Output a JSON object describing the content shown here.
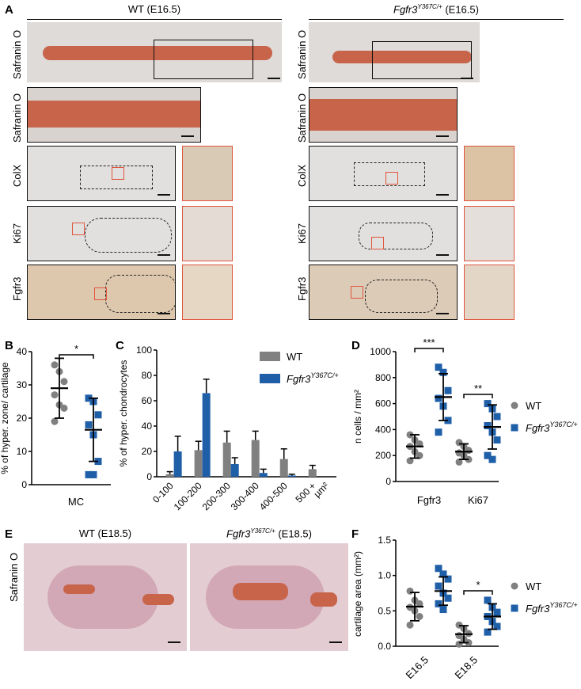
{
  "panel_letters": {
    "A": "A",
    "B": "B",
    "C": "C",
    "D": "D",
    "E": "E",
    "F": "F"
  },
  "panelA": {
    "wt_title": "WT (E16.5)",
    "mut_title_gene": "Fgfr3",
    "mut_title_sup": "Y367C/+",
    "mut_title_stage": " (E16.5)",
    "rows": [
      "Safranin O",
      "ColX",
      "Ki67",
      "Fgfr3"
    ],
    "row0_label": "Safranin O",
    "row1_label": "Safranin O",
    "row2_label": "ColX",
    "row3_label": "Ki67",
    "row4_label": "Fgfr3"
  },
  "panelE": {
    "wt_title": "WT (E18.5)",
    "mut_title_gene": "Fgfr3",
    "mut_title_sup": "Y367C/+",
    "mut_title_stage": " (E18.5)",
    "row_label": "Safranin O"
  },
  "colors": {
    "wt": "#808080",
    "mut": "#1f5fa8",
    "red_box": "#e0553e",
    "stain": "#c8644a"
  },
  "chart_data": [
    {
      "id": "B",
      "type": "scatter",
      "ylabel": "% of hyper. zone/ cartilage",
      "ylim": [
        0,
        40
      ],
      "yticks": [
        0,
        10,
        20,
        30,
        40
      ],
      "categories": [
        "MC"
      ],
      "significance": "*",
      "series": [
        {
          "group": "WT",
          "mean": 29,
          "sd": 9,
          "values": [
            36,
            34,
            31,
            27,
            24,
            23,
            19
          ]
        },
        {
          "group": "Fgfr3Y367C/+",
          "mean": 16.5,
          "sd": 9.5,
          "values": [
            26,
            25,
            21,
            18,
            15,
            7,
            3,
            3
          ]
        }
      ]
    },
    {
      "id": "C",
      "type": "bar",
      "ylabel": "% of hyper. chondrocytes",
      "ylim": [
        0,
        100
      ],
      "yticks": [
        0,
        20,
        40,
        60,
        80,
        100
      ],
      "categories": [
        "0-100",
        "100-200",
        "200-300",
        "300-400",
        "400-500",
        "500 +"
      ],
      "x_unit": "µm²",
      "legend": [
        "WT",
        "Fgfr3Y367C/+"
      ],
      "series": [
        {
          "name": "WT",
          "values": [
            2,
            21,
            27,
            29,
            14,
            6
          ],
          "err": [
            2,
            7,
            9,
            7,
            8,
            3
          ]
        },
        {
          "name": "Fgfr3Y367C/+",
          "values": [
            20,
            66,
            10,
            3,
            1,
            0
          ],
          "err": [
            12,
            11,
            5,
            3,
            1,
            0
          ]
        }
      ]
    },
    {
      "id": "D",
      "type": "scatter",
      "ylabel": "n cells / mm²",
      "ylim": [
        0,
        1000
      ],
      "yticks": [
        0,
        200,
        400,
        600,
        800,
        1000
      ],
      "categories": [
        "Fgfr3",
        "Ki67"
      ],
      "significance": [
        "***",
        "**"
      ],
      "legend": [
        "WT",
        "Fgfr3Y367C/+"
      ],
      "series": [
        {
          "group": "WT",
          "category": "Fgfr3",
          "mean": 270,
          "sd": 90,
          "values": [
            360,
            320,
            290,
            270,
            230,
            200,
            160
          ]
        },
        {
          "group": "Fgfr3Y367C/+",
          "category": "Fgfr3",
          "mean": 650,
          "sd": 180,
          "values": [
            880,
            840,
            700,
            640,
            580,
            470,
            380
          ]
        },
        {
          "group": "WT",
          "category": "Ki67",
          "mean": 230,
          "sd": 60,
          "values": [
            300,
            270,
            240,
            220,
            200,
            170,
            150
          ]
        },
        {
          "group": "Fgfr3Y367C/+",
          "category": "Ki67",
          "mean": 420,
          "sd": 170,
          "values": [
            600,
            560,
            500,
            430,
            380,
            320,
            200,
            170
          ]
        }
      ]
    },
    {
      "id": "F",
      "type": "scatter",
      "ylabel": "cartilage area (mm²)",
      "ylim": [
        0,
        1.5
      ],
      "yticks": [
        "0.0",
        "0.5",
        "1.0",
        "1.5"
      ],
      "categories": [
        "E16.5",
        "E18.5"
      ],
      "significance": [
        "",
        "*"
      ],
      "legend": [
        "WT",
        "Fgfr3Y367C/+"
      ],
      "series": [
        {
          "group": "WT",
          "category": "E16.5",
          "mean": 0.56,
          "sd": 0.2,
          "values": [
            0.78,
            0.65,
            0.6,
            0.55,
            0.5,
            0.42,
            0.3
          ]
        },
        {
          "group": "Fgfr3Y367C/+",
          "category": "E16.5",
          "mean": 0.78,
          "sd": 0.2,
          "values": [
            1.1,
            1.02,
            0.95,
            0.85,
            0.75,
            0.68,
            0.6,
            0.52
          ]
        },
        {
          "group": "WT",
          "category": "E18.5",
          "mean": 0.17,
          "sd": 0.12,
          "values": [
            0.3,
            0.25,
            0.18,
            0.15,
            0.1,
            0.05,
            0.03
          ]
        },
        {
          "group": "Fgfr3Y367C/+",
          "category": "E18.5",
          "mean": 0.42,
          "sd": 0.18,
          "values": [
            0.65,
            0.55,
            0.48,
            0.42,
            0.35,
            0.28,
            0.2
          ]
        }
      ]
    }
  ]
}
